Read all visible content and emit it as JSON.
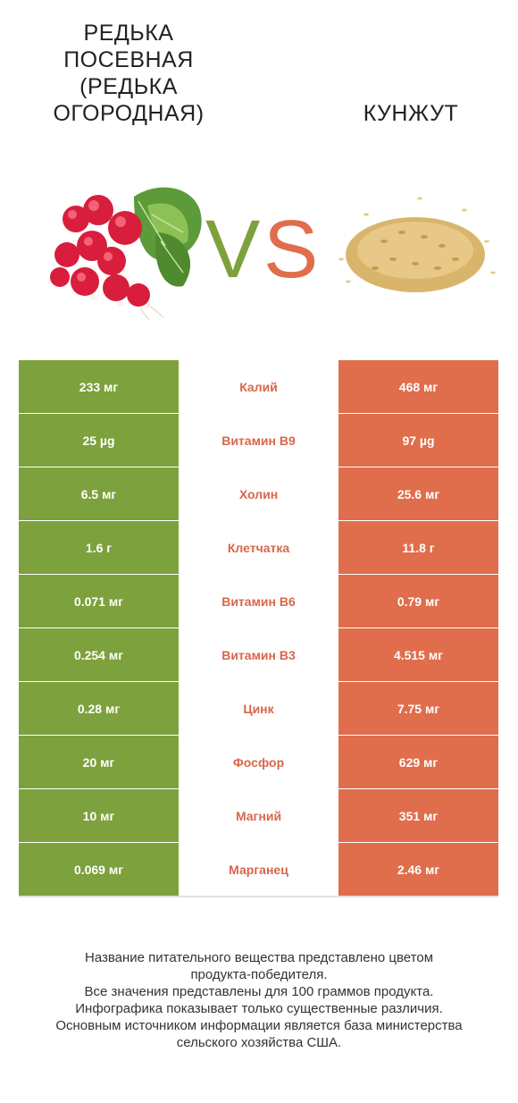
{
  "left_food": {
    "title_lines": [
      "РЕДЬКА",
      "ПОСЕВНАЯ",
      "(РЕДЬКА",
      "ОГОРОДНАЯ)"
    ]
  },
  "right_food": {
    "title": "КУНЖУТ"
  },
  "vs": {
    "v": "V",
    "s": "S",
    "v_color": "#7da13c",
    "s_color": "#e06d4b"
  },
  "colors": {
    "left": "#7da13c",
    "right": "#e06d4b",
    "nutrient_text": "#d9664a"
  },
  "rows": [
    {
      "left": "233 мг",
      "nutrient": "Калий",
      "right": "468 мг"
    },
    {
      "left": "25 µg",
      "nutrient": "Витамин B9",
      "right": "97 µg"
    },
    {
      "left": "6.5 мг",
      "nutrient": "Холин",
      "right": "25.6 мг"
    },
    {
      "left": "1.6 г",
      "nutrient": "Клетчатка",
      "right": "11.8 г"
    },
    {
      "left": "0.071 мг",
      "nutrient": "Витамин B6",
      "right": "0.79 мг"
    },
    {
      "left": "0.254 мг",
      "nutrient": "Витамин B3",
      "right": "4.515 мг"
    },
    {
      "left": "0.28 мг",
      "nutrient": "Цинк",
      "right": "7.75 мг"
    },
    {
      "left": "20 мг",
      "nutrient": "Фосфор",
      "right": "629 мг"
    },
    {
      "left": "10 мг",
      "nutrient": "Магний",
      "right": "351 мг"
    },
    {
      "left": "0.069 мг",
      "nutrient": "Марганец",
      "right": "2.46 мг"
    }
  ],
  "footer": [
    "Название питательного вещества представлено цветом",
    "продукта-победителя.",
    "Все значения представлены для 100 граммов продукта.",
    "Инфографика показывает только существенные различия.",
    "Основным источником информации является база министерства",
    "сельского хозяйства США."
  ]
}
